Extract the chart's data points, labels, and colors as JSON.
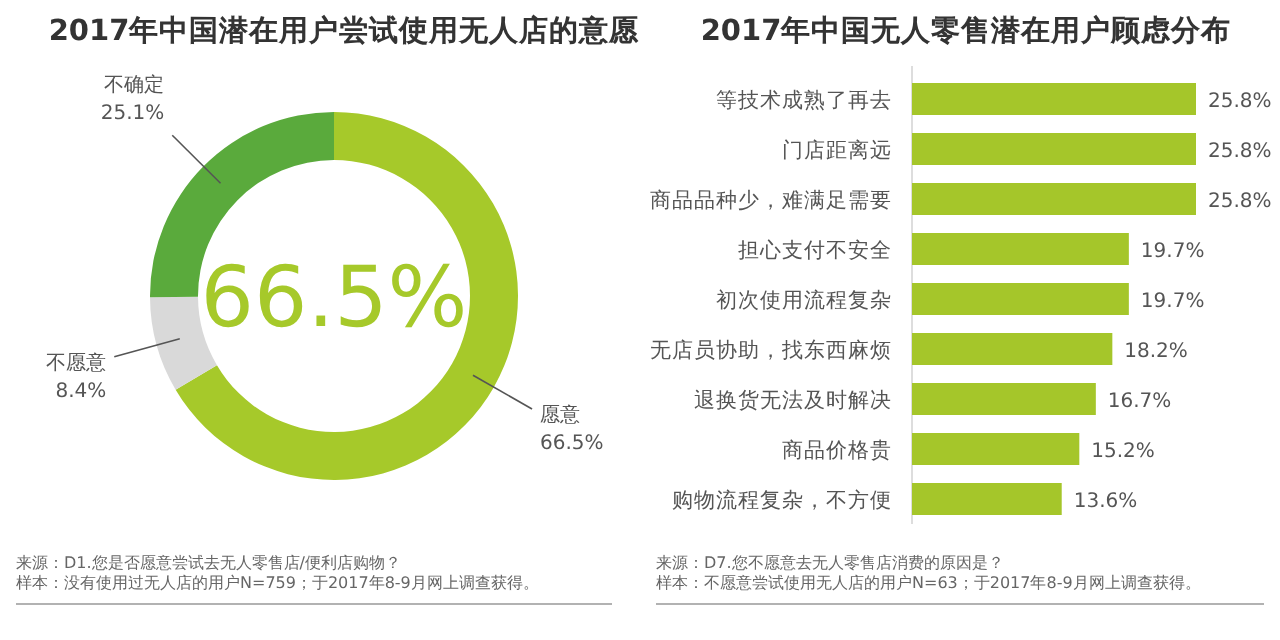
{
  "chart_data": [
    {
      "type": "donut",
      "title": "2017年中国潜在用户尝试使用无人店的意愿",
      "categories": [
        "愿意",
        "不愿意",
        "不确定"
      ],
      "values": [
        66.5,
        8.4,
        25.1
      ],
      "colors": [
        "#a6c92a",
        "#d9d9d9",
        "#5aaa3c"
      ],
      "value_labels": [
        "66.5%",
        "8.4%",
        "25.1%"
      ],
      "annotations": [
        "66.5%",
        "来源：D1.您是否愿意尝试去无人零售店/便利店购物？",
        "样本：没有使用过无人店的用户N=759；于2017年8-9月网上调查获得。"
      ]
    },
    {
      "type": "bar",
      "orientation": "horizontal",
      "title": "2017年中国无人零售潜在用户顾虑分布",
      "categories": [
        "等技术成熟了再去",
        "门店距离远",
        "商品品种少，难满足需要",
        "担心支付不安全",
        "初次使用流程复杂",
        "无店员协助，找东西麻烦",
        "退换货无法及时解决",
        "商品价格贵",
        "购物流程复杂，不方便"
      ],
      "values": [
        25.8,
        25.8,
        25.8,
        19.7,
        19.7,
        18.2,
        16.7,
        15.2,
        13.6
      ],
      "color": "#a5c62a",
      "value_labels": [
        "25.8%",
        "25.8%",
        "25.8%",
        "19.7%",
        "19.7%",
        "18.2%",
        "16.7%",
        "15.2%",
        "13.6%"
      ],
      "annotations": [
        "来源：D7.您不愿意去无人零售店消费的原因是？",
        "样本：不愿意尝试使用无人店的用户N=63；于2017年8-9月网上调查获得。"
      ]
    }
  ]
}
